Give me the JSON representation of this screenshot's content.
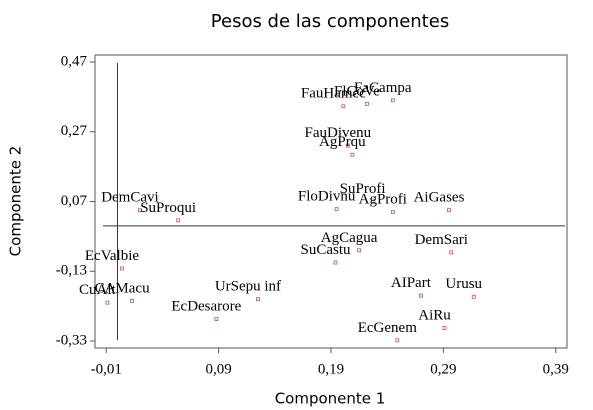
{
  "chart_data": {
    "type": "scatter",
    "title": "Pesos de las componentes",
    "xlabel": "Componente 1",
    "ylabel": "Componente 2",
    "xlim": [
      -0.02,
      0.4
    ],
    "ylim": [
      -0.35,
      0.49
    ],
    "xticks": [
      {
        "value": -0.01,
        "label": "-0,01"
      },
      {
        "value": 0.09,
        "label": "0,09"
      },
      {
        "value": 0.19,
        "label": "0,19"
      },
      {
        "value": 0.29,
        "label": "0,29"
      },
      {
        "value": 0.39,
        "label": "0,39"
      }
    ],
    "yticks": [
      {
        "value": 0.47,
        "label": "0,47"
      },
      {
        "value": 0.27,
        "label": "0,27"
      },
      {
        "value": 0.07,
        "label": "0,07"
      },
      {
        "value": -0.13,
        "label": "-0,13"
      },
      {
        "value": -0.33,
        "label": "-0,33"
      }
    ],
    "color": "#c0506b",
    "labels": [
      "FlCoVe",
      "FaCampa",
      "FauHamec",
      "FauDivenu",
      "AgPrqu",
      "DemCavi",
      "SuProqui",
      "SuProfi",
      "FloDivnu",
      "AgProfi",
      "AiGases",
      "AgCagua",
      "SuCastu",
      "DemSari",
      "EcValbie",
      "CuAlt",
      "CAMacu",
      "UrSepu inf",
      "EcDesarore",
      "AIPart",
      "Urusu",
      "AiRu",
      "EcGenem"
    ],
    "x": [
      0.222,
      0.245,
      0.201,
      0.205,
      0.209,
      0.02,
      0.054,
      0.227,
      0.195,
      0.245,
      0.295,
      0.215,
      0.194,
      0.297,
      0.004,
      -0.009,
      0.013,
      0.125,
      0.088,
      0.27,
      0.317,
      0.291,
      0.249
    ],
    "values": [
      0.35,
      0.36,
      0.343,
      0.23,
      0.204,
      0.045,
      0.016,
      0.07,
      0.048,
      0.04,
      0.045,
      -0.07,
      -0.105,
      -0.076,
      -0.122,
      -0.22,
      -0.215,
      -0.21,
      -0.267,
      -0.2,
      -0.203,
      -0.293,
      -0.328
    ]
  }
}
